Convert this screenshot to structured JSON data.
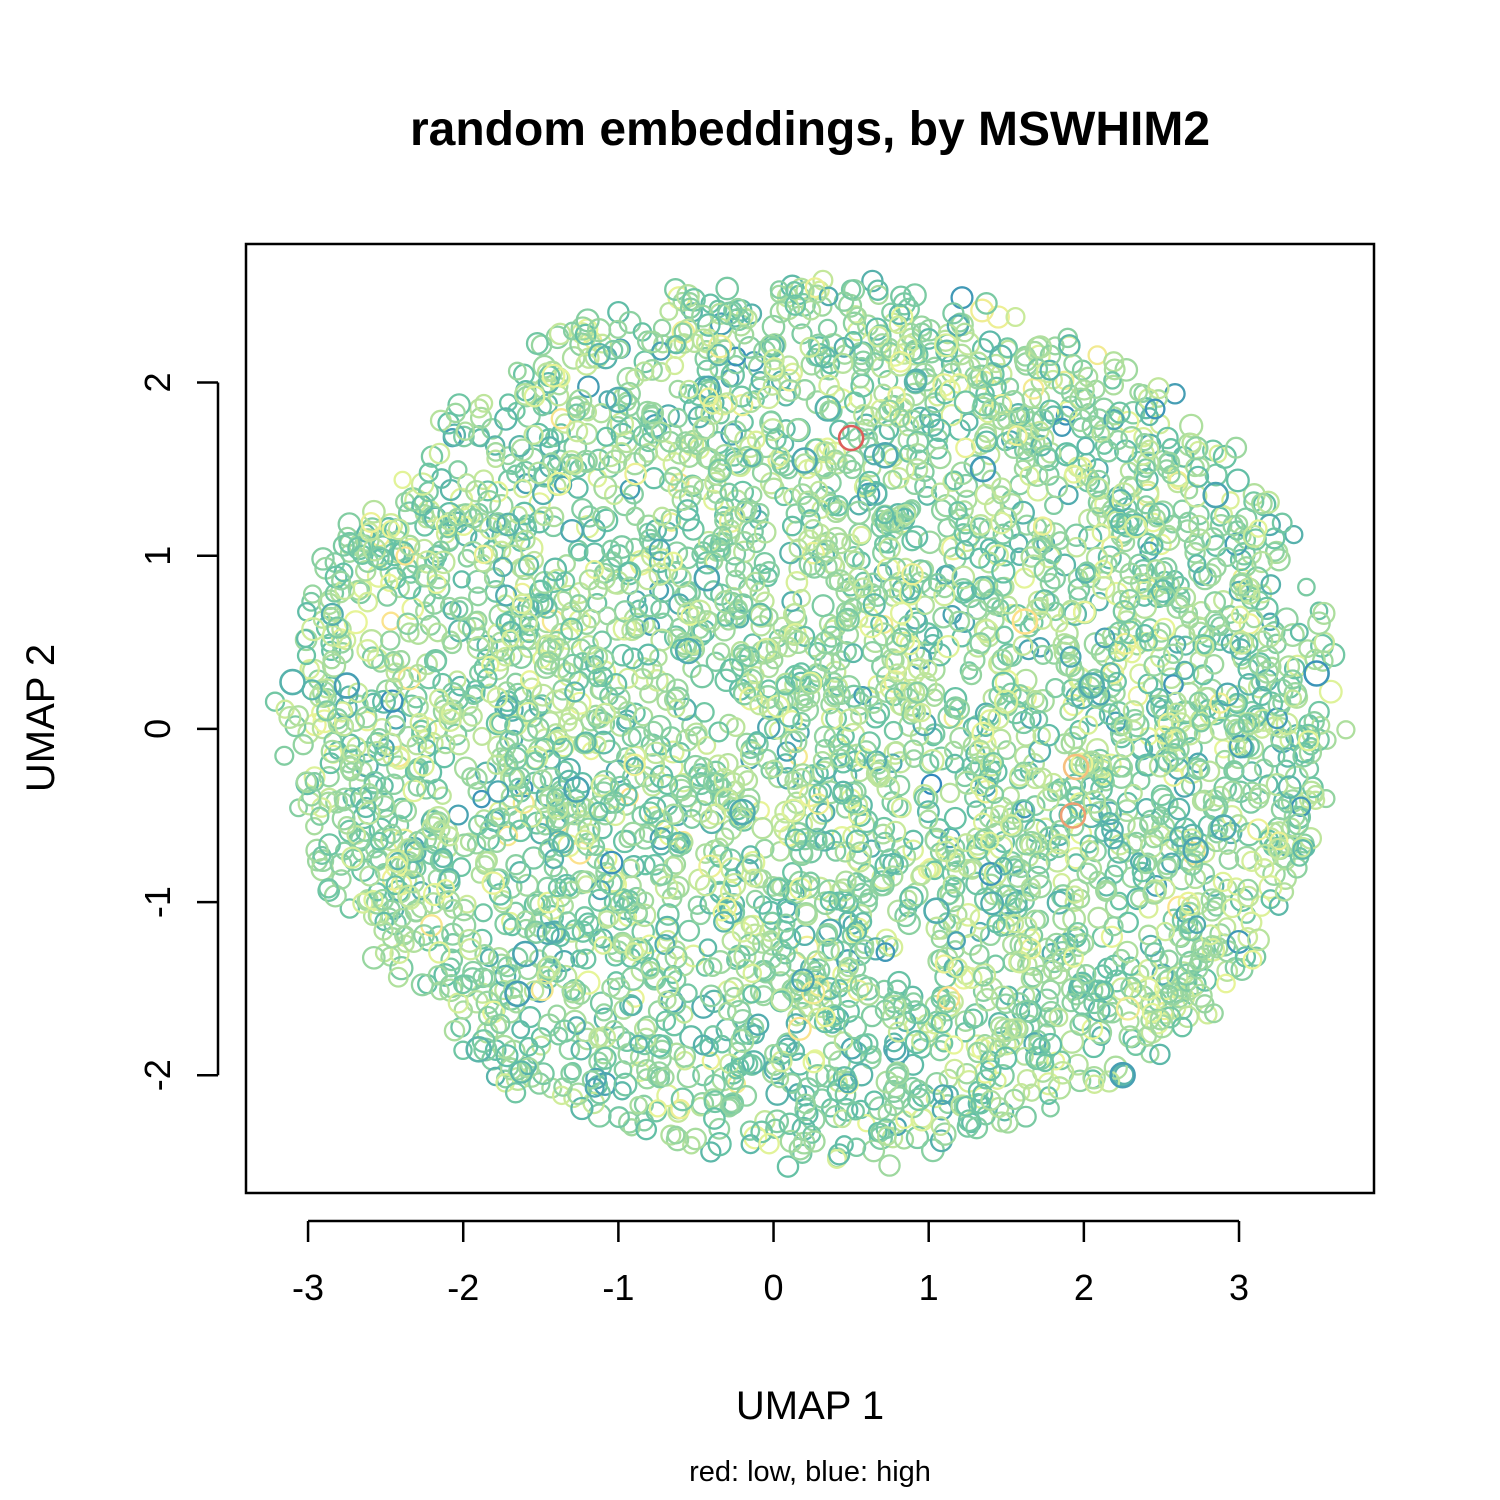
{
  "chart_data": {
    "type": "scatter",
    "title": "random embeddings, by MSWHIM2",
    "xlabel": "UMAP 1",
    "ylabel": "UMAP 2",
    "subtitle": "red: low, blue: high",
    "xlim": [
      -3.4,
      3.87
    ],
    "ylim": [
      -2.68,
      2.8
    ],
    "xticks": [
      -3,
      -2,
      -1,
      0,
      1,
      2,
      3
    ],
    "yticks": [
      -2,
      -1,
      0,
      1,
      2
    ],
    "grid": false,
    "marker": "open-circle",
    "color_scale": {
      "low": "#d53e4f",
      "mid_low": "#fee08b",
      "mid": "#e6f598",
      "mid_high": "#66c2a5",
      "high": "#3288bd"
    },
    "cloud": {
      "center": [
        0.25,
        0.05
      ],
      "x_extent": [
        -3.15,
        3.65
      ],
      "y_extent": [
        -2.5,
        2.6
      ]
    },
    "highlighted_points": [
      {
        "x": -3.1,
        "y": 0.27,
        "v": 0.82
      },
      {
        "x": -2.75,
        "y": 0.25,
        "v": 0.9
      },
      {
        "x": -1.27,
        "y": -0.35,
        "v": 0.88
      },
      {
        "x": -1.6,
        "y": -1.3,
        "v": 0.88
      },
      {
        "x": -1.65,
        "y": -1.53,
        "v": 0.9
      },
      {
        "x": -0.43,
        "y": 0.87,
        "v": 0.88
      },
      {
        "x": -0.55,
        "y": 0.45,
        "v": 0.85
      },
      {
        "x": 0.72,
        "y": 1.58,
        "v": 0.86
      },
      {
        "x": 1.35,
        "y": 1.5,
        "v": 0.92
      },
      {
        "x": 2.85,
        "y": 1.35,
        "v": 0.88
      },
      {
        "x": 3.5,
        "y": 0.32,
        "v": 0.95
      },
      {
        "x": 2.72,
        "y": -0.7,
        "v": 0.88
      },
      {
        "x": 2.9,
        "y": -0.57,
        "v": 0.85
      },
      {
        "x": 2.25,
        "y": -2.0,
        "v": 0.9
      },
      {
        "x": -0.2,
        "y": -0.48,
        "v": 0.85
      },
      {
        "x": 0.2,
        "y": 1.55,
        "v": 0.86
      },
      {
        "x": 0.35,
        "y": 1.85,
        "v": 0.82
      },
      {
        "x": -1.0,
        "y": 1.9,
        "v": 0.84
      },
      {
        "x": 2.05,
        "y": 0.25,
        "v": 0.84
      },
      {
        "x": 1.05,
        "y": -1.05,
        "v": 0.84
      },
      {
        "x": -1.9,
        "y": -1.85,
        "v": 0.8
      },
      {
        "x": 0.5,
        "y": 1.68,
        "v": 0.05
      },
      {
        "x": 1.95,
        "y": -0.22,
        "v": 0.2
      },
      {
        "x": 1.93,
        "y": -0.5,
        "v": 0.15
      },
      {
        "x": 1.62,
        "y": 0.62,
        "v": 0.25
      }
    ]
  }
}
